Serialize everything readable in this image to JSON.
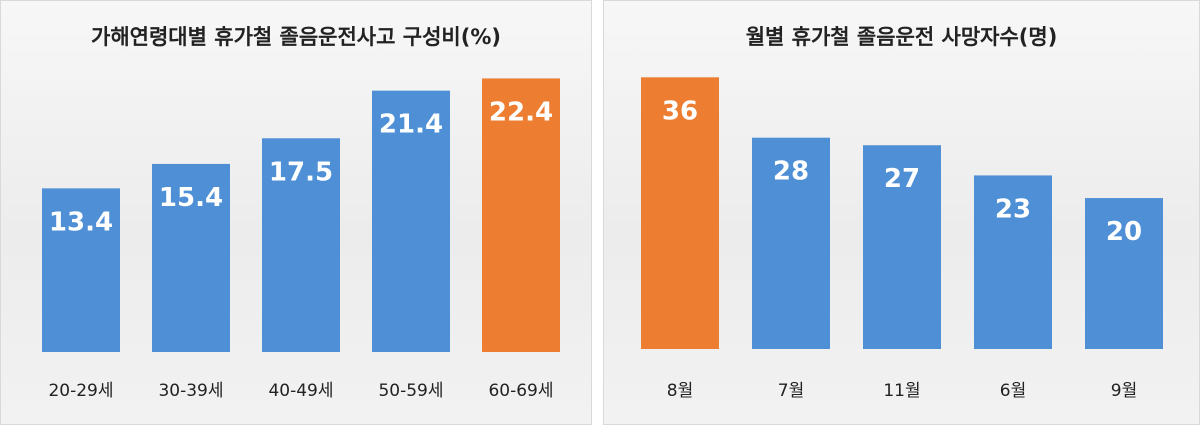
{
  "colors": {
    "blue": "#4e8fd6",
    "highlight": "#ed7d31"
  },
  "chart_data": [
    {
      "type": "bar",
      "title": "가해연령대별 휴가철 졸음운전사고 구성비(%)",
      "categories": [
        "20-29세",
        "30-39세",
        "40-49세",
        "50-59세",
        "60-69세"
      ],
      "values": [
        13.4,
        15.4,
        17.5,
        21.4,
        22.4
      ],
      "value_labels": [
        "13.4",
        "15.4",
        "17.5",
        "21.4",
        "22.4"
      ],
      "highlight_index": 4,
      "ylim": [
        0,
        23.5
      ],
      "grid": false
    },
    {
      "type": "bar",
      "title": "월별 휴가철 졸음운전 사망자수(명)",
      "categories": [
        "8월",
        "7월",
        "11월",
        "6월",
        "9월"
      ],
      "values": [
        36,
        28,
        27,
        23,
        20
      ],
      "value_labels": [
        "36",
        "28",
        "27",
        "23",
        "20"
      ],
      "highlight_index": 0,
      "ylim": [
        0,
        37.5
      ],
      "grid": false
    }
  ]
}
